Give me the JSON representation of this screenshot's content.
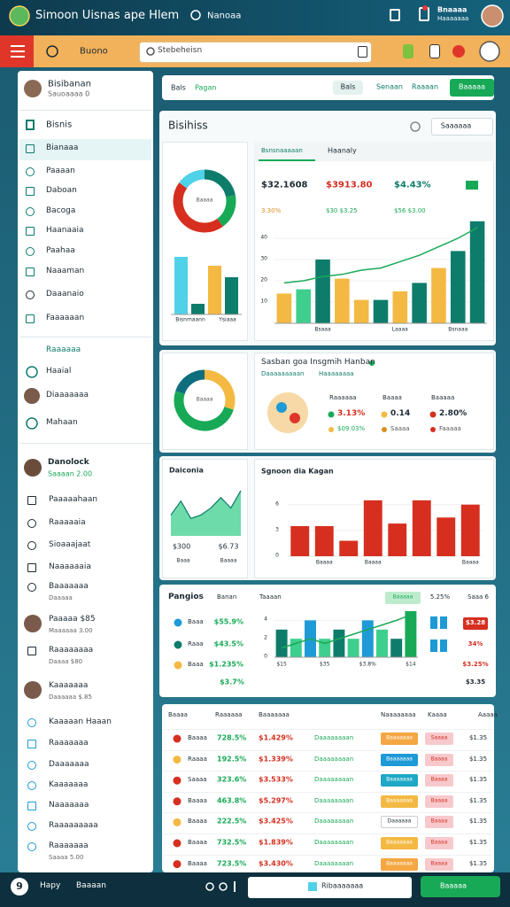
{
  "header": {
    "title": "Simoon Uisnas ape Hlem",
    "search": "Nanoaa",
    "account_name": "Bnaaaa",
    "account_role": "Haaaaaaa"
  },
  "toolbar": {
    "dropdown": "Buono",
    "search": "Stebeheisn"
  },
  "sidebar": {
    "profile": {
      "name": "Bisibanan",
      "sub": "Sauoaaaa 0"
    },
    "section": "Bisnis",
    "items": [
      "Bianaaa",
      "Paaaan",
      "Daboan",
      "Bacoga",
      "Haanaaia",
      "Paahaa",
      "Naaaman",
      "Daaanaio",
      "Faaaaaan"
    ],
    "section2": "Raaaaaa",
    "items2": [
      "Haaial",
      "Diaaaaaaa",
      "Mahaan"
    ],
    "profile2": {
      "name": "Danolock",
      "sub": "Saaaan 2.00"
    },
    "items3": [
      {
        "label": "Paaaaahaan"
      },
      {
        "label": "Raaaaaia"
      },
      {
        "label": "Sioaaajaat"
      },
      {
        "label": "Naaaaaaia"
      },
      {
        "label": "Baaaaaaa",
        "sub": "Daaaaa"
      },
      {
        "label": "Paaaaa $85",
        "sub": "Maaaaaa 3.00"
      },
      {
        "label": "Raaaaaaaa",
        "sub": "Daaaa $80"
      },
      {
        "label": "Kaaaaaaa",
        "sub": "Daaaaaa $.85"
      },
      {
        "label": "Kaaaaan Haaan"
      },
      {
        "label": "Raaaaaaa"
      },
      {
        "label": "Daaaaaaa"
      },
      {
        "label": "Kaaaaaaa"
      },
      {
        "label": "Naaaaaaa"
      },
      {
        "label": "Raaaaaaaaa"
      },
      {
        "label": "Raaaaaaa",
        "sub": "Saaaa 5.00"
      }
    ]
  },
  "tabs": {
    "left": [
      "Bals",
      "Pagan"
    ],
    "right": [
      "Bals",
      "Senaan",
      "Raaaan"
    ],
    "button": "Baaaaa"
  },
  "overview": {
    "title": "Bisihiss",
    "dropdown": "Saaaaaa",
    "donut": {
      "label": "Baaaa",
      "values": [
        22,
        18,
        45,
        15
      ],
      "colors": [
        "#0e7c6b",
        "#18a957",
        "#d62f1f",
        "#4fd1e8"
      ]
    },
    "bars": {
      "values": [
        6.5,
        1.2,
        5.5,
        4.2
      ],
      "colors": [
        "#4fd1e8",
        "#0e7c6b",
        "#f4b942",
        "#0e7c6b"
      ],
      "labels": [
        "Bisnmaann",
        "Ysiaaa"
      ]
    }
  },
  "main_chart": {
    "type": "bar",
    "tabs": [
      "Bsnsnaaaaan",
      "Haanaly"
    ],
    "stats": [
      "$32.1608",
      "$3913.80",
      "$4.43%"
    ],
    "substats": [
      "3.30%",
      "$30 $3.25",
      "$56 $3.00"
    ],
    "categories": [
      null,
      null,
      "Bsaaa",
      null,
      null,
      null,
      "Laaaa",
      null,
      null,
      "Bsnaaa",
      null
    ],
    "values": [
      14,
      16,
      30,
      21,
      11,
      11,
      15,
      19,
      26,
      34,
      48
    ],
    "colors": [
      "#f4b942",
      "#3ecf8e",
      "#0e7c6b",
      "#f4b942",
      "#f4b942",
      "#0e7c6b",
      "#f4b942",
      "#0e7c6b",
      "#f4b942",
      "#0e7c6b",
      "#0e7c6b"
    ],
    "line": [
      19,
      20,
      22,
      23,
      25,
      26,
      29,
      32,
      36,
      40,
      45
    ],
    "line_color": "#18a957",
    "ylim": [
      0,
      50
    ],
    "yticks": [
      10,
      20,
      30,
      40
    ]
  },
  "segments": {
    "title": "Sasban goa Insgmih Hanban",
    "subtitle": "Daaaaaaaaan",
    "subtitle2": "Haaaaaaaa",
    "donut": {
      "label": "Baaaa",
      "values": [
        30,
        50,
        20
      ],
      "colors": [
        "#f4b942",
        "#18a957",
        "#0e6e7e"
      ]
    },
    "legend": [
      {
        "label": "Raaaaaa",
        "value": "3.13%",
        "sub": "$09.03%",
        "color": "#18a957"
      },
      {
        "label": "Baaaa",
        "value": "0.14",
        "sub": "Saaaa",
        "color": "#f4b942"
      },
      {
        "label": "Baaaaa",
        "value": "2.80%",
        "sub": "Faaaaa",
        "color": "#d62f1f"
      }
    ]
  },
  "trend": {
    "type": "area",
    "title": "Daiconia",
    "values": [
      3,
      5,
      2.5,
      3,
      4,
      5.5,
      4,
      6.5
    ],
    "ylim": [
      0,
      7
    ],
    "color": "#3ecf8e",
    "labels": [
      "$300",
      "$6.73"
    ],
    "categories": [
      "Baaa",
      "Baaaa"
    ]
  },
  "red_chart": {
    "type": "bar",
    "title": "Sgnoon dia Kagan",
    "values": [
      3.5,
      3.5,
      1.8,
      6.5,
      3.8,
      6.5,
      4.5,
      6
    ],
    "color": "#d62f1f",
    "ylim": [
      0,
      7
    ],
    "yticks": [
      0,
      3,
      6
    ],
    "categories": [
      null,
      "Baaaa",
      null,
      "Baaaa",
      null,
      null,
      null,
      "Baaaa"
    ]
  },
  "metrics": {
    "title": "Pangios",
    "columns": [
      "Banan",
      "Taaaan"
    ],
    "pill": "Baaaaa",
    "pct": "5.25%",
    "right": "Saaa 6",
    "rows": [
      {
        "label": "Baaa",
        "value": "$55.9%",
        "color": "#1e9ad6"
      },
      {
        "label": "Raaa",
        "value": "$43.5%",
        "color": "#0e7c6b"
      },
      {
        "label": "Baaa",
        "value": "$1.235%",
        "color": "#f4b942"
      }
    ],
    "total": "$3.7%",
    "chart": {
      "type": "bar",
      "values": [
        3,
        2,
        4,
        2,
        3,
        2,
        4,
        3,
        2,
        5
      ],
      "colors": [
        "#0e7c6b",
        "#3ecf8e",
        "#1e9ad6",
        "#3ecf8e",
        "#0e7c6b",
        "#3ecf8e",
        "#1e9ad6",
        "#3ecf8e",
        "#0e7c6b",
        "#18a957"
      ],
      "line": [
        1,
        1.5,
        2,
        1.5,
        2,
        2.5,
        3,
        3.5,
        4,
        4.6
      ],
      "line_color": "#18a957",
      "ylim": [
        0,
        5
      ],
      "yticks": [
        0,
        2,
        4
      ],
      "categories": [
        "$15",
        null,
        null,
        "$35",
        null,
        null,
        "$3.8%",
        null,
        null,
        "$14"
      ]
    },
    "right_values": [
      "$3.28",
      "34%",
      "$3.25%",
      "$3.35"
    ]
  },
  "table": {
    "columns": [
      "Baaaa",
      "Raaaaaa",
      "Baaaaaaa",
      "Naaaaaaaa",
      "Kaaaa",
      "Aaaaa"
    ],
    "rows": [
      [
        "Baaaa",
        "728.5%",
        "$1.429%",
        "Daaaaaaaan",
        "Baaaaaaa",
        "Saaaa",
        "$1.35"
      ],
      [
        "Raaaa",
        "192.5%",
        "$1.339%",
        "Daaaaaaaan",
        "Baaaaaaa",
        "Baaaa",
        "$1.35"
      ],
      [
        "Saaaa",
        "323.6%",
        "$3.533%",
        "Daaaaaaaan",
        "Baaaaaaa",
        "Baaaa",
        "$1.35"
      ],
      [
        "Baaaa",
        "463.8%",
        "$5.297%",
        "Daaaaaaaan",
        "Baaaaaaa",
        "Baaaa",
        "$1.35"
      ],
      [
        "Baaaa",
        "222.5%",
        "$3.425%",
        "Daaaaaaaan",
        "Daaaaaa",
        "Baaaa",
        "$1.35"
      ],
      [
        "Baaaa",
        "732.5%",
        "$1.839%",
        "Daaaaaaaan",
        "Baaaaaaa",
        "Baaaa",
        "$1.35"
      ],
      [
        "Baaaa",
        "723.5%",
        "$3.430%",
        "Daaaaaaaan",
        "Baaaaaaa",
        "Baaaa",
        "$1.35"
      ]
    ]
  },
  "footer": {
    "badge": "9",
    "label": "Hapy",
    "label2": "Baaaan",
    "search": "Ribaaaaaaa",
    "button": "Baaaaa"
  }
}
